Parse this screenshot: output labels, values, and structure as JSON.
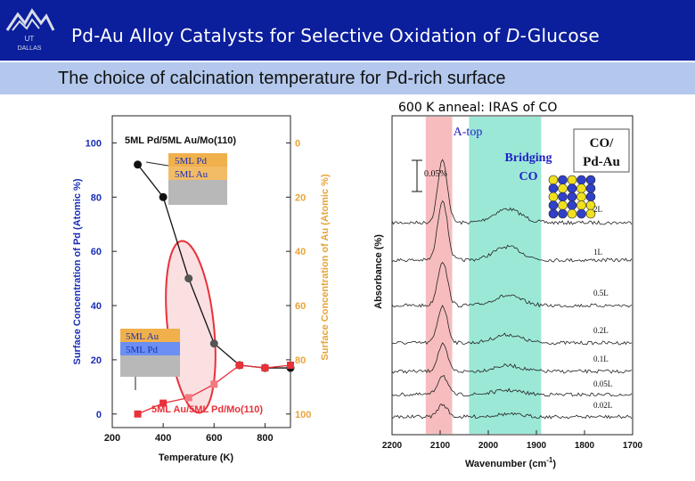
{
  "header": {
    "title_parts": [
      "Pd-Au Alloy Catalysts for Selective Oxidation of ",
      "D",
      "-Glucose"
    ],
    "subtitle": "The choice of calcination temperature for Pd-rich surface",
    "logo": {
      "icon": "university-logo-icon",
      "line1": "UT",
      "line2": "DALLAS"
    }
  },
  "right_caption_parts": [
    "600 K anneal: ",
    "IRAS",
    " of CO"
  ],
  "colors": {
    "banner": "#0b1e9c",
    "subbar": "#b3c8ec",
    "pd_series": "#111111",
    "au_series": "#e8313a",
    "au_axis": "#e8a437",
    "pd_axis": "#1a2fb5",
    "pink_band": "#f4a7a8",
    "green_band": "#7be0c8"
  },
  "chart_data": [
    {
      "type": "line",
      "title": "5ML Pd/5ML Au/Mo(110)",
      "bottom_label": "5ML Au/5ML Pd/Mo(110)",
      "xlabel": "Temperature (K)",
      "ylabel": "Surface Concentration of Pd (Atomic %)",
      "y2label": "Surface Concentration of Au (Atomic %)",
      "xlim": [
        200,
        900
      ],
      "ylim": [
        -5,
        110
      ],
      "xticks": [
        200,
        400,
        600,
        800
      ],
      "yticks": [
        0,
        20,
        40,
        60,
        80,
        100
      ],
      "y2ticks": [
        0,
        20,
        40,
        60,
        80,
        100
      ],
      "series": [
        {
          "name": "5ML Pd/5ML Au/Mo(110)",
          "x": [
            300,
            400,
            500,
            600,
            700,
            800,
            900
          ],
          "y": [
            92,
            80,
            50,
            26,
            18,
            17,
            17
          ]
        },
        {
          "name": "5ML Au/5ML Pd/Mo(110)",
          "x": [
            300,
            400,
            500,
            600,
            700,
            800,
            900
          ],
          "y": [
            0,
            4,
            6,
            11,
            18,
            17,
            18
          ]
        }
      ],
      "insets": [
        {
          "top_layer": "5ML Pd",
          "bottom_layer": "5ML Au"
        },
        {
          "top_layer": "5ML Au",
          "bottom_layer": "5ML Pd"
        }
      ]
    },
    {
      "type": "line",
      "xlabel": "Wavenumber (cm",
      "xlabel_sup": "-1",
      "xlabel_end": ")",
      "ylabel": "Absorbance (%)",
      "xticks": [
        2200,
        2100,
        2000,
        1900,
        1800,
        1700
      ],
      "xlim": [
        2200,
        1700
      ],
      "scale_label": "0.05%",
      "bands": [
        {
          "label": "A-top",
          "from": 2130,
          "to": 2075
        },
        {
          "label_line1": "Bridging",
          "label_line2": "CO",
          "from": 2040,
          "to": 1890
        }
      ],
      "legend_line1": "CO/",
      "legend_line2": "Pd-Au",
      "exposures": [
        "2L",
        "1L",
        "0.5L",
        "0.2L",
        "0.1L",
        "0.05L",
        "0.02L"
      ]
    }
  ]
}
